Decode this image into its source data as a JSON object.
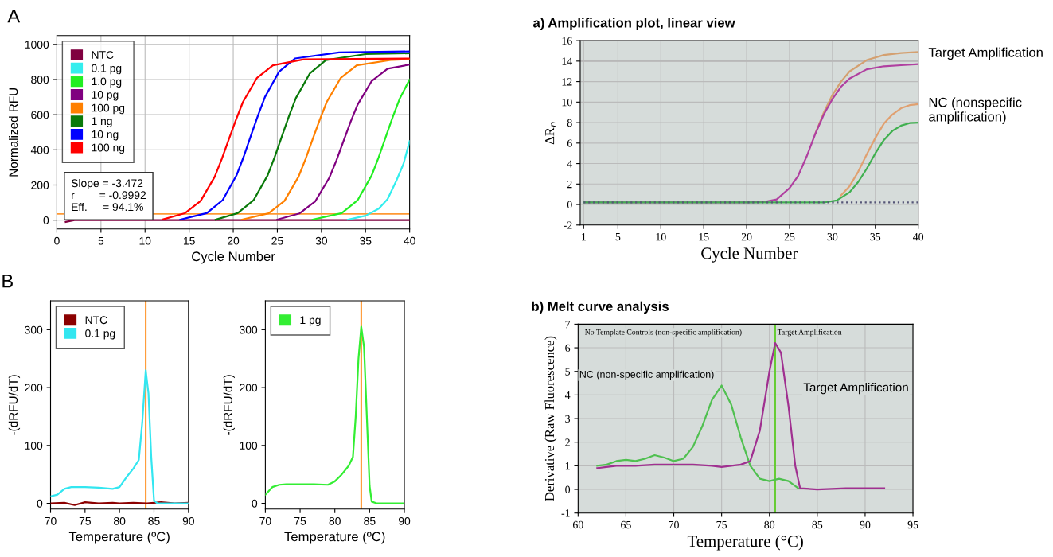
{
  "chart_data": [
    {
      "type": "line",
      "title": "A",
      "xlabel": "Cycle Number",
      "ylabel": "Normalized RFU",
      "xlim": [
        0,
        40
      ],
      "ylim": [
        -50,
        1050
      ],
      "xticks": [
        0,
        5,
        10,
        15,
        20,
        25,
        30,
        35,
        40
      ],
      "yticks": [
        0,
        200,
        400,
        600,
        800,
        1000
      ],
      "grid": true,
      "legend": "top left",
      "ref_lines": [
        {
          "axis": "y",
          "value": 35,
          "color": "#ff9933"
        }
      ],
      "annotations": [
        "Slope = -3.472",
        "r        = -0.9992",
        "Eff.     = 94.1%"
      ],
      "series": [
        {
          "name": "NTC",
          "color": "#800040",
          "x": [
            1,
            2,
            40
          ],
          "values": [
            -10,
            0,
            0
          ]
        },
        {
          "name": "0.1 pg",
          "color": "#33eeee",
          "x": [
            33,
            35,
            36.5,
            37.5,
            38.5,
            39.3,
            40
          ],
          "values": [
            3,
            25,
            65,
            120,
            225,
            320,
            450
          ]
        },
        {
          "name": "1.0 pg",
          "color": "#22ee22",
          "x": [
            29,
            32.3,
            34.1,
            35.7,
            36.5,
            37.3,
            38.1,
            38.9,
            40
          ],
          "values": [
            3,
            40,
            113,
            255,
            359,
            475,
            589,
            694,
            800
          ]
        },
        {
          "name": "10 pg",
          "color": "#800080",
          "x": [
            25,
            27.5,
            29.3,
            30.9,
            31.7,
            32.5,
            33.3,
            34.1,
            35.7,
            37.5,
            40
          ],
          "values": [
            3,
            38,
            107,
            242,
            340,
            450,
            558,
            657,
            792,
            862,
            885
          ]
        },
        {
          "name": "100 pg",
          "color": "#ff8000",
          "x": [
            21,
            24,
            25.8,
            27.4,
            28.2,
            29,
            29.8,
            30.6,
            32.2,
            34,
            38,
            40
          ],
          "values": [
            3,
            39,
            109,
            247,
            348,
            460,
            570,
            672,
            810,
            881,
            912,
            915
          ]
        },
        {
          "name": "1 ng",
          "color": "#0a7a0a",
          "x": [
            18,
            20.5,
            22.3,
            23.9,
            24.7,
            25.5,
            26.3,
            27.1,
            28.7,
            30.5,
            35,
            40
          ],
          "values": [
            3,
            40,
            113,
            255,
            359,
            475,
            589,
            694,
            836,
            910,
            945,
            950
          ]
        },
        {
          "name": "10 ng",
          "color": "#0000ff",
          "x": [
            14,
            17,
            18.8,
            20.4,
            21.2,
            22,
            22.8,
            23.6,
            25.2,
            27,
            32,
            40
          ],
          "values": [
            3,
            40,
            114,
            258,
            363,
            480,
            595,
            701,
            845,
            920,
            955,
            960
          ]
        },
        {
          "name": "100 ng",
          "color": "#ff0000",
          "x": [
            12,
            14.5,
            16.3,
            17.9,
            18.7,
            19.5,
            20.3,
            21.1,
            22.7,
            24.5,
            28,
            40
          ],
          "values": [
            4,
            39,
            109,
            247,
            348,
            460,
            570,
            672,
            810,
            881,
            915,
            920
          ]
        }
      ]
    },
    {
      "type": "line",
      "title": "B",
      "xlabel": "Temperature (ºC)",
      "ylabel": "-(dRFU/dT)",
      "xlim": [
        70,
        90
      ],
      "ylim": [
        -10,
        350
      ],
      "xticks": [
        70,
        75,
        80,
        85,
        90
      ],
      "yticks": [
        0,
        100,
        200,
        300
      ],
      "legend": "top left",
      "ref_lines": [
        {
          "axis": "x",
          "value": 83.8,
          "color": "#ff9933"
        }
      ],
      "series": [
        {
          "name": "NTC",
          "color": "#8b0000",
          "x": [
            70,
            72,
            73.5,
            75,
            77,
            79,
            80,
            82,
            84,
            86,
            88,
            90
          ],
          "values": [
            0,
            1,
            -3,
            2,
            0,
            1,
            0,
            1,
            0,
            2,
            0,
            1
          ]
        },
        {
          "name": "0.1 pg",
          "color": "#33e6f0",
          "x": [
            70,
            71,
            72,
            73,
            75,
            77,
            79,
            80,
            81,
            82,
            82.8,
            83.3,
            83.8,
            84.2,
            84.6,
            85,
            85.5,
            90
          ],
          "values": [
            12,
            15,
            25,
            28,
            28,
            27,
            25,
            28,
            45,
            60,
            75,
            140,
            230,
            190,
            80,
            5,
            0,
            0
          ]
        }
      ]
    },
    {
      "type": "line",
      "xlabel": "Temperature (ºC)",
      "ylabel": "-(dRFU/dT)",
      "xlim": [
        70,
        90
      ],
      "ylim": [
        -10,
        350
      ],
      "xticks": [
        70,
        75,
        80,
        85,
        90
      ],
      "yticks": [
        0,
        100,
        200,
        300
      ],
      "legend": "top left",
      "ref_lines": [
        {
          "axis": "x",
          "value": 83.8,
          "color": "#ff9933"
        }
      ],
      "series": [
        {
          "name": "1 pg",
          "color": "#33ee33",
          "x": [
            70,
            71,
            72,
            73,
            75,
            77,
            79,
            80,
            81,
            82,
            82.6,
            83,
            83.4,
            83.8,
            84.2,
            84.6,
            85,
            85.3,
            86,
            90
          ],
          "values": [
            15,
            28,
            32,
            33,
            33,
            33,
            32,
            38,
            50,
            65,
            80,
            150,
            250,
            305,
            270,
            150,
            30,
            3,
            0,
            0
          ]
        }
      ]
    },
    {
      "type": "line",
      "title": "a) Amplification plot, linear view",
      "xlabel": "Cycle Number",
      "ylabel": "ΔR$_{n}$",
      "xlim": [
        0.6,
        40
      ],
      "ylim": [
        -2,
        16
      ],
      "xticks": [
        1,
        5,
        10,
        15,
        20,
        25,
        30,
        35,
        40
      ],
      "yticks": [
        -2,
        0,
        2,
        4,
        6,
        8,
        10,
        12,
        14,
        16
      ],
      "grid": true,
      "ref_lines": [
        {
          "axis": "y",
          "value": 14,
          "color": "#b8b8b8"
        }
      ],
      "annotations": [
        "Target Amplification",
        "NC (nonspecific amplification)"
      ],
      "series": [
        {
          "color": "#d4a070",
          "x": [
            28,
            29,
            30,
            31,
            32,
            34,
            36,
            38,
            40
          ],
          "values": [
            6.9,
            9.0,
            10.7,
            12.0,
            13.0,
            14.1,
            14.6,
            14.8,
            14.9
          ]
        },
        {
          "color": "#b040a0",
          "x": [
            1,
            20,
            22,
            23.5,
            25,
            26,
            27,
            28,
            29,
            30,
            31,
            32,
            34,
            36,
            38,
            40
          ],
          "values": [
            0.2,
            0.2,
            0.25,
            0.5,
            1.6,
            2.8,
            4.7,
            6.9,
            8.8,
            10.3,
            11.5,
            12.3,
            13.2,
            13.5,
            13.6,
            13.7
          ]
        },
        {
          "color": "#e0a070",
          "x": [
            31,
            32,
            33,
            34,
            35,
            36,
            37,
            38,
            39,
            40
          ],
          "values": [
            0.9,
            1.8,
            3.2,
            4.9,
            6.5,
            7.9,
            8.8,
            9.4,
            9.7,
            9.8
          ]
        },
        {
          "color": "#40b050",
          "x": [
            1,
            29,
            30.5,
            32,
            33,
            34,
            35,
            36,
            37,
            38,
            39,
            40
          ],
          "values": [
            0.2,
            0.2,
            0.4,
            1.2,
            2.2,
            3.5,
            5.0,
            6.3,
            7.2,
            7.7,
            7.95,
            8.0
          ]
        },
        {
          "color": "#555577",
          "line_style": "dotted",
          "x": [
            1,
            40
          ],
          "values": [
            0.2,
            0.2
          ]
        }
      ]
    },
    {
      "type": "line",
      "title": "b) Melt curve analysis",
      "xlabel": "Temperature (°C)",
      "ylabel": "Derivative (Raw Fluorescence)",
      "xlim": [
        60,
        95
      ],
      "ylim": [
        -1,
        7
      ],
      "xticks": [
        60,
        65,
        70,
        75,
        80,
        85,
        90,
        95
      ],
      "yticks": [
        -1,
        0,
        1,
        2,
        3,
        4,
        5,
        6,
        7
      ],
      "grid": true,
      "ref_lines": [
        {
          "axis": "x",
          "value": 80.6,
          "color": "#66cc33"
        }
      ],
      "annotations": [
        "No Template Controls (non-specific amplification)",
        "Target Amplification",
        "NC (non-specific amplification)",
        "Target Amplification"
      ],
      "series": [
        {
          "color": "#50c050",
          "x": [
            62,
            63,
            64,
            65,
            66,
            67,
            68,
            69,
            70,
            71,
            72,
            73,
            74,
            75,
            76,
            77,
            78,
            79,
            80,
            81,
            82,
            83
          ],
          "values": [
            1.0,
            1.05,
            1.2,
            1.25,
            1.2,
            1.3,
            1.45,
            1.35,
            1.2,
            1.3,
            1.8,
            2.7,
            3.8,
            4.4,
            3.6,
            2.2,
            1.0,
            0.45,
            0.35,
            0.45,
            0.35,
            0.05
          ]
        },
        {
          "color": "#a03090",
          "x": [
            62,
            64,
            66,
            68,
            70,
            72,
            74,
            75,
            77,
            78,
            79,
            80,
            80.6,
            81.2,
            82,
            82.7,
            83.2,
            85,
            88,
            90,
            92
          ],
          "values": [
            0.9,
            1.0,
            1.0,
            1.05,
            1.05,
            1.05,
            1.0,
            0.95,
            1.05,
            1.2,
            2.5,
            5.0,
            6.2,
            5.8,
            3.5,
            1.0,
            0.05,
            0,
            0.05,
            0.05,
            0.05
          ]
        }
      ]
    }
  ]
}
